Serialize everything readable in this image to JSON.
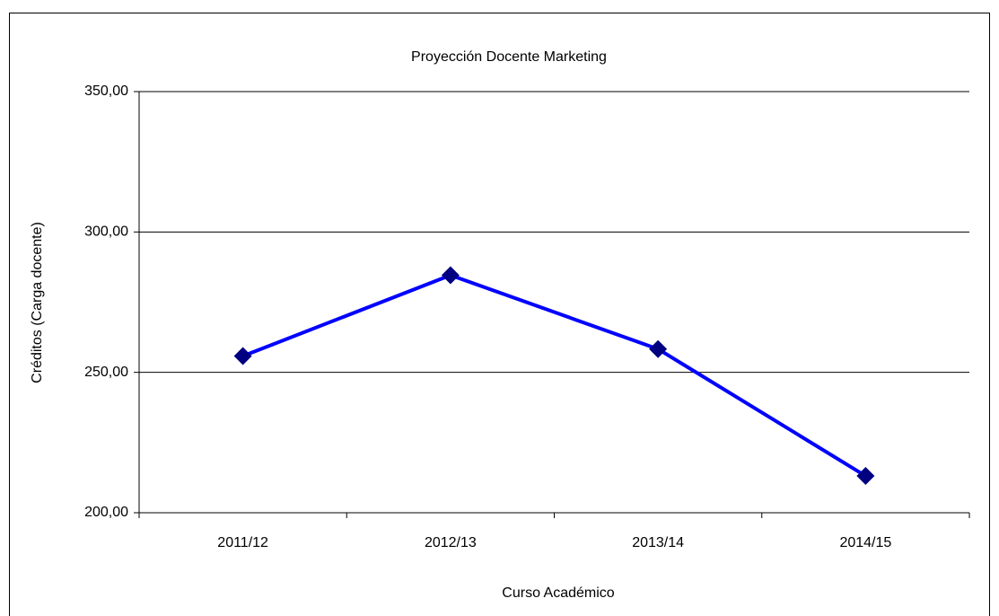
{
  "chart_data": {
    "type": "line",
    "title": "Proyección Docente Marketing",
    "x_label": "Curso Académico",
    "y_label": "Créditos (Carga docente)",
    "categories": [
      "2011/12",
      "2012/13",
      "2013/14",
      "2014/15"
    ],
    "series": [
      {
        "name": "Créditos",
        "color": "#0000ff",
        "marker_color": "#000080",
        "values": [
          255.8,
          284.6,
          258.3,
          213.1
        ]
      }
    ],
    "ylim": [
      200,
      350
    ],
    "yticks": [
      {
        "value": 200,
        "label": "200,00"
      },
      {
        "value": 250,
        "label": "250,00"
      },
      {
        "value": 300,
        "label": "300,00"
      },
      {
        "value": 350,
        "label": "350,00"
      }
    ],
    "grid": true
  }
}
